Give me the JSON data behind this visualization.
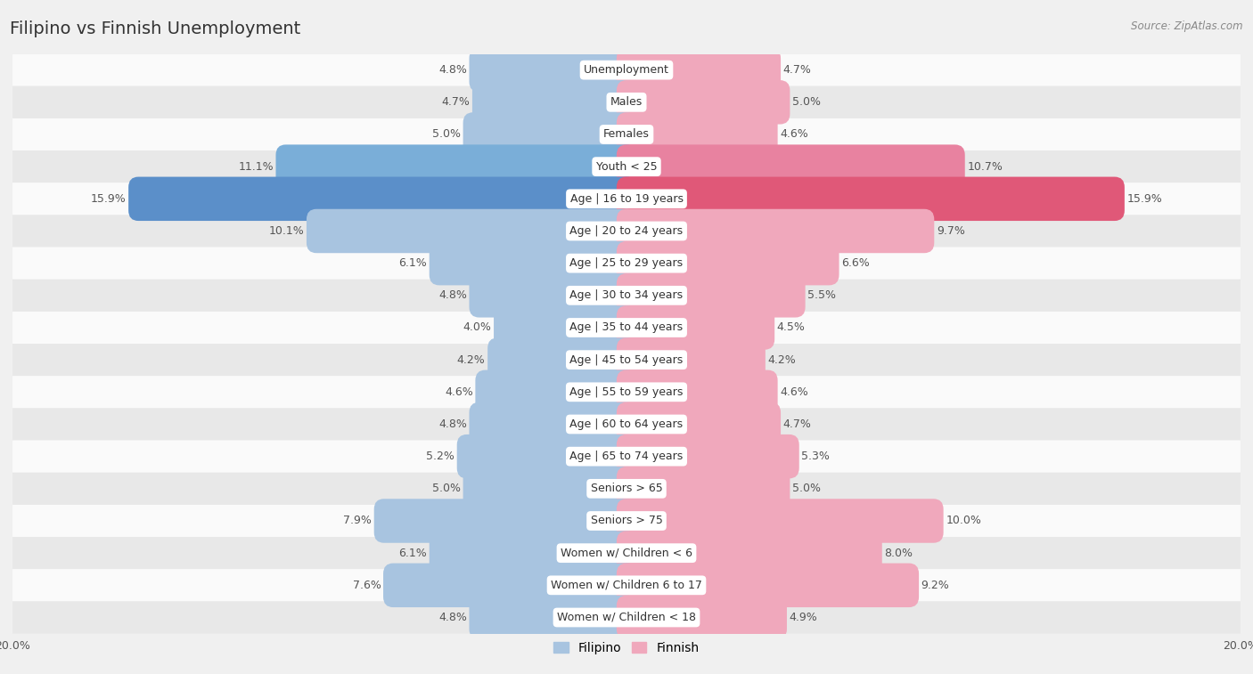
{
  "title": "Filipino vs Finnish Unemployment",
  "source": "Source: ZipAtlas.com",
  "categories": [
    "Unemployment",
    "Males",
    "Females",
    "Youth < 25",
    "Age | 16 to 19 years",
    "Age | 20 to 24 years",
    "Age | 25 to 29 years",
    "Age | 30 to 34 years",
    "Age | 35 to 44 years",
    "Age | 45 to 54 years",
    "Age | 55 to 59 years",
    "Age | 60 to 64 years",
    "Age | 65 to 74 years",
    "Seniors > 65",
    "Seniors > 75",
    "Women w/ Children < 6",
    "Women w/ Children 6 to 17",
    "Women w/ Children < 18"
  ],
  "filipino": [
    4.8,
    4.7,
    5.0,
    11.1,
    15.9,
    10.1,
    6.1,
    4.8,
    4.0,
    4.2,
    4.6,
    4.8,
    5.2,
    5.0,
    7.9,
    6.1,
    7.6,
    4.8
  ],
  "finnish": [
    4.7,
    5.0,
    4.6,
    10.7,
    15.9,
    9.7,
    6.6,
    5.5,
    4.5,
    4.2,
    4.6,
    4.7,
    5.3,
    5.0,
    10.0,
    8.0,
    9.2,
    4.9
  ],
  "filipino_color": "#a8c4e0",
  "finnish_color": "#f0a8bc",
  "filipino_highlight_color": "#5b8fc9",
  "finnish_highlight_color": "#e05878",
  "highlight_rows": [
    3,
    4
  ],
  "axis_max": 20.0,
  "bg_color": "#f0f0f0",
  "row_bg_light": "#fafafa",
  "row_bg_dark": "#e8e8e8",
  "bar_height": 0.72,
  "label_fontsize": 9,
  "title_fontsize": 14,
  "category_fontsize": 9,
  "legend_fontsize": 10,
  "value_color_normal": "#555555",
  "value_color_highlight": "#ffffff"
}
